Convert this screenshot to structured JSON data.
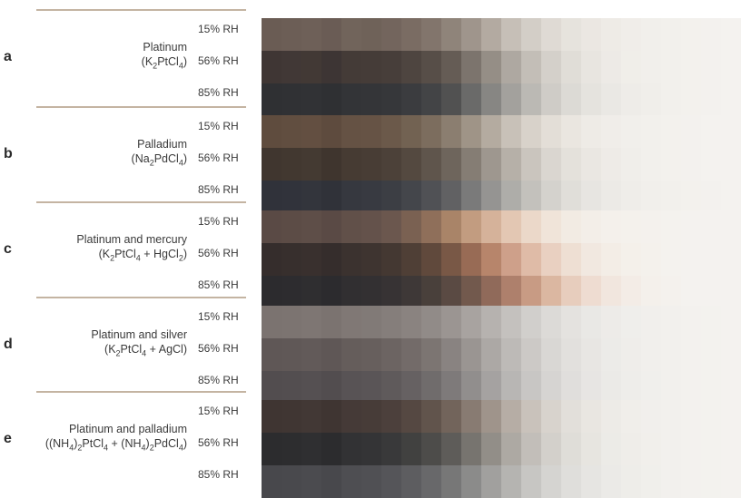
{
  "humidity_levels": [
    "15% RH",
    "56% RH",
    "85% RH"
  ],
  "panels": [
    {
      "letter": "a",
      "name": "Platinum",
      "formula": [
        "(K",
        "2",
        "PtCl",
        "4",
        ")"
      ],
      "strips": [
        [
          "#6a5c54",
          "#6c5e56",
          "#6e6058",
          "#6a5c55",
          "#71645b",
          "#6f6259",
          "#73655d",
          "#7a6c63",
          "#82756c",
          "#8f847a",
          "#9f958c",
          "#b3aaa1",
          "#c6bfb7",
          "#d3cec7",
          "#dfdad4",
          "#e6e3dd",
          "#ebe7e2",
          "#eeebe6",
          "#f0ede9",
          "#f1efeb",
          "#f2f0ec",
          "#f3f1ed",
          "#f3f1ee",
          "#f4f2ef"
        ],
        [
          "#3f3634",
          "#413836",
          "#423935",
          "#3d3534",
          "#443b37",
          "#453c38",
          "#473e3a",
          "#4e4540",
          "#574e48",
          "#655c55",
          "#7c746d",
          "#958e86",
          "#aea8a1",
          "#c3beb7",
          "#d4d0ca",
          "#e0ddd7",
          "#e8e5e0",
          "#edeae6",
          "#f0eee9",
          "#f1efeb",
          "#f2f0ec",
          "#f3f1ed",
          "#f3f1ee",
          "#f4f2ef"
        ],
        [
          "#2f3033",
          "#303134",
          "#313235",
          "#2f3033",
          "#333437",
          "#343538",
          "#36373a",
          "#3b3c3f",
          "#434446",
          "#515151",
          "#6a6a69",
          "#878683",
          "#a3a19d",
          "#bbb9b4",
          "#cfccc7",
          "#dcdad5",
          "#e5e3de",
          "#eae8e4",
          "#eeece8",
          "#f0eeea",
          "#f2f0ec",
          "#f3f1ed",
          "#f3f1ee",
          "#f4f2ef"
        ]
      ]
    },
    {
      "letter": "b",
      "name": "Palladium",
      "formula": [
        "(Na",
        "2",
        "PdCl",
        "4",
        ")"
      ],
      "strips": [
        [
          "#5f4c3e",
          "#614e40",
          "#634f41",
          "#5e4b3e",
          "#655244",
          "#665345",
          "#6b594a",
          "#726252",
          "#7c6d5e",
          "#8b7e70",
          "#9f9487",
          "#b4aba0",
          "#c8c1b8",
          "#d8d2ca",
          "#e3ded7",
          "#eae6e0",
          "#eeebe6",
          "#f0ede9",
          "#f1efeb",
          "#f2f0ec",
          "#f3f1ed",
          "#f3f1ee",
          "#f4f2ef",
          "#f4f2ef"
        ],
        [
          "#40362f",
          "#423830",
          "#443a32",
          "#3f352e",
          "#463b33",
          "#483d35",
          "#4c4139",
          "#544940",
          "#5f554c",
          "#6e655c",
          "#857d74",
          "#9e978f",
          "#b6b0a8",
          "#cac5be",
          "#dad6d0",
          "#e4e1db",
          "#eae7e2",
          "#eeebe7",
          "#f0eeea",
          "#f2f0ec",
          "#f3f1ed",
          "#f3f1ee",
          "#f4f2ef",
          "#f4f2ef"
        ],
        [
          "#30323a",
          "#31333b",
          "#33353c",
          "#303239",
          "#36383f",
          "#383a41",
          "#3c3e44",
          "#44464b",
          "#505155",
          "#616163",
          "#7a7a7a",
          "#959492",
          "#aeada9",
          "#c3c1bc",
          "#d4d2cd",
          "#e0ded9",
          "#e7e5e1",
          "#eceae6",
          "#efede9",
          "#f1efeb",
          "#f2f0ec",
          "#f3f1ed",
          "#f3f1ee",
          "#f4f2ef"
        ]
      ]
    },
    {
      "letter": "c",
      "name": "Platinum and mercury",
      "formula": [
        "(K",
        "2",
        "PtCl",
        "4",
        " + HgCl",
        "2",
        ")"
      ],
      "strips": [
        [
          "#5a4a45",
          "#5c4c46",
          "#5e4e48",
          "#5a4a45",
          "#615049",
          "#64524b",
          "#6b574e",
          "#7a6152",
          "#8f6f5a",
          "#a98468",
          "#c29c80",
          "#d5b29a",
          "#e3c7b3",
          "#ebd8c9",
          "#f0e4d9",
          "#f2ebe3",
          "#f3eee8",
          "#f4f0eb",
          "#f4f1ec",
          "#f4f1ed",
          "#f4f2ee",
          "#f4f2ef",
          "#f4f2ef",
          "#f4f2ef"
        ],
        [
          "#352d2c",
          "#372f2d",
          "#39302e",
          "#352d2c",
          "#3b322f",
          "#3e3430",
          "#443832",
          "#4f3f36",
          "#60493c",
          "#795846",
          "#986b55",
          "#b7856b",
          "#cea08a",
          "#dfbba7",
          "#e9d0c1",
          "#eedfd3",
          "#f1e8e0",
          "#f3ede6",
          "#f4f0ea",
          "#f4f1ec",
          "#f4f2ee",
          "#f4f2ef",
          "#f4f2ef",
          "#f4f2ef"
        ],
        [
          "#2c2b2e",
          "#2d2c2f",
          "#2f2e30",
          "#2c2b2e",
          "#312f31",
          "#333032",
          "#373334",
          "#3e3837",
          "#49403b",
          "#5a4a43",
          "#72594d",
          "#906a5a",
          "#ae806c",
          "#c89b84",
          "#dbb7a1",
          "#e7cdbd",
          "#eedcd1",
          "#f1e6de",
          "#f3ece6",
          "#f4f0eb",
          "#f4f1ed",
          "#f4f2ef",
          "#f4f2ef",
          "#f4f2ef"
        ]
      ]
    },
    {
      "letter": "d",
      "name": "Platinum and silver",
      "formula": [
        "(K",
        "2",
        "PtCl",
        "4",
        " + AgCl)"
      ],
      "strips": [
        [
          "#7b7370",
          "#7c7471",
          "#7e7673",
          "#7b7370",
          "#807875",
          "#817a77",
          "#857e7b",
          "#8a8380",
          "#918b88",
          "#9b9592",
          "#a8a3a0",
          "#b6b2af",
          "#c4c1be",
          "#d1cfcc",
          "#dcdad7",
          "#e4e2df",
          "#e9e8e5",
          "#edebe8",
          "#efeeeb",
          "#f1efec",
          "#f2f0ed",
          "#f3f1ee",
          "#f3f2ee",
          "#f4f2ef"
        ],
        [
          "#5f5756",
          "#605857",
          "#625a59",
          "#5f5756",
          "#655d5b",
          "#675f5d",
          "#6c6462",
          "#736b69",
          "#7c7572",
          "#898381",
          "#9a9592",
          "#aca8a5",
          "#bdbab7",
          "#ccc9c6",
          "#d9d7d4",
          "#e2e0dd",
          "#e8e6e3",
          "#ecebe8",
          "#efedea",
          "#f1efec",
          "#f2f0ed",
          "#f3f1ee",
          "#f3f2ee",
          "#f4f2ef"
        ],
        [
          "#524d4f",
          "#534e50",
          "#555052",
          "#524d4f",
          "#585355",
          "#5a5557",
          "#5f5a5b",
          "#666162",
          "#706c6c",
          "#7e7a7a",
          "#918e8d",
          "#a5a2a1",
          "#b8b6b4",
          "#c8c6c4",
          "#d6d4d2",
          "#e0dedc",
          "#e7e5e3",
          "#ebeae7",
          "#eeedea",
          "#f0efec",
          "#f2f0ed",
          "#f3f1ee",
          "#f3f2ee",
          "#f4f2ef"
        ]
      ]
    },
    {
      "letter": "e",
      "name": "Platinum and palladium",
      "formula": [
        "((NH",
        "4",
        ")",
        "2",
        "PtCl",
        "4",
        " + (NH",
        "4",
        ")",
        "2",
        "PdCl",
        "4",
        ")"
      ],
      "strips": [
        [
          "#3f3532",
          "#403633",
          "#423835",
          "#3f3532",
          "#453a37",
          "#473c38",
          "#4c403c",
          "#554842",
          "#61544c",
          "#72645b",
          "#887b72",
          "#9f948b",
          "#b6ada5",
          "#c9c2bb",
          "#d8d3cd",
          "#e2dfda",
          "#e9e6e1",
          "#edebe7",
          "#f0eeea",
          "#f1efec",
          "#f2f0ed",
          "#f3f1ee",
          "#f3f2ee",
          "#f4f2ef"
        ],
        [
          "#2c2c2e",
          "#2d2d2f",
          "#2f2f31",
          "#2c2c2e",
          "#323234",
          "#343436",
          "#39393a",
          "#414140",
          "#4d4c4a",
          "#5e5c59",
          "#77746f",
          "#928e88",
          "#ada9a3",
          "#c2beb9",
          "#d3d0cb",
          "#dfddd8",
          "#e7e5e0",
          "#ecebe7",
          "#efede9",
          "#f1efeb",
          "#f2f0ed",
          "#f3f1ee",
          "#f3f2ee",
          "#f4f2ef"
        ],
        [
          "#48484c",
          "#49494d",
          "#4b4b4f",
          "#48484c",
          "#4e4e52",
          "#505054",
          "#555559",
          "#5d5d60",
          "#68686a",
          "#777777",
          "#8b8b8a",
          "#a1a09e",
          "#b5b4b1",
          "#c7c6c3",
          "#d5d4d1",
          "#dfdedb",
          "#e6e5e2",
          "#ebeae7",
          "#eeede9",
          "#f0efeb",
          "#f2f0ed",
          "#f3f1ee",
          "#f3f2ee",
          "#f4f2ef"
        ]
      ]
    }
  ]
}
